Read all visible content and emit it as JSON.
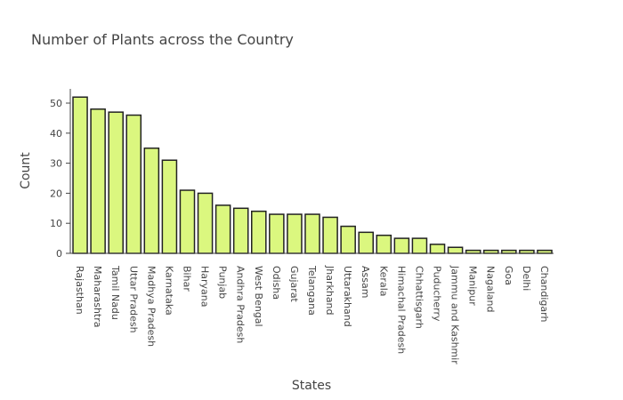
{
  "chart_data": {
    "type": "bar",
    "title": "Number of Plants across the Country",
    "xlabel": "States",
    "ylabel": "Count",
    "categories": [
      "Rajasthan",
      "Maharashtra",
      "Tamil Nadu",
      "Uttar Pradesh",
      "Madhya Pradesh",
      "Karnataka",
      "Bihar",
      "Haryana",
      "Punjab",
      "Andhra Pradesh",
      "West Bengal",
      "Odisha",
      "Gujarat",
      "Telangana",
      "Jharkhand",
      "Uttarakhand",
      "Assam",
      "Kerala",
      "Himachal Pradesh",
      "Chhattisgarh",
      "Puducherry",
      "Jammu and Kashmir",
      "Manipur",
      "Nagaland",
      "Goa",
      "Delhi",
      "Chandigarh"
    ],
    "values": [
      52,
      48,
      47,
      46,
      35,
      31,
      21,
      20,
      16,
      15,
      14,
      13,
      13,
      13,
      12,
      9,
      7,
      6,
      5,
      5,
      3,
      2,
      1,
      1,
      1,
      1,
      1
    ],
    "ylim": [
      0,
      55
    ],
    "yticks": [
      0,
      10,
      20,
      30,
      40,
      50
    ],
    "grid": false,
    "colors": {
      "bar_fill": "#dbf77f",
      "bar_stroke": "#222222",
      "axis": "#444444"
    }
  }
}
